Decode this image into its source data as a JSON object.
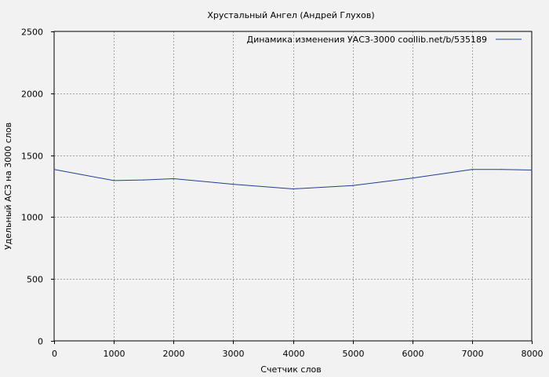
{
  "chart_data": {
    "type": "line",
    "title": "Хрустальный Ангел (Андрей Глухов)",
    "xlabel": "Счетчик слов",
    "ylabel": "Удельный АСЗ на 3000 слов",
    "xlim": [
      0,
      8000
    ],
    "ylim": [
      0,
      2500
    ],
    "xticks": [
      0,
      1000,
      2000,
      3000,
      4000,
      5000,
      6000,
      7000,
      8000
    ],
    "yticks": [
      0,
      500,
      1000,
      1500,
      2000,
      2500
    ],
    "grid": true,
    "legend_position": "top-right",
    "series": [
      {
        "name": "Динамика изменения УАСЗ-3000  coollib.net/b/535189",
        "color": "#1f3f8f",
        "x": [
          0,
          1000,
          1500,
          2000,
          3000,
          4000,
          5000,
          6000,
          7000,
          7500,
          8000
        ],
        "y": [
          1385,
          1295,
          1300,
          1310,
          1265,
          1228,
          1255,
          1315,
          1385,
          1385,
          1380
        ]
      }
    ]
  }
}
